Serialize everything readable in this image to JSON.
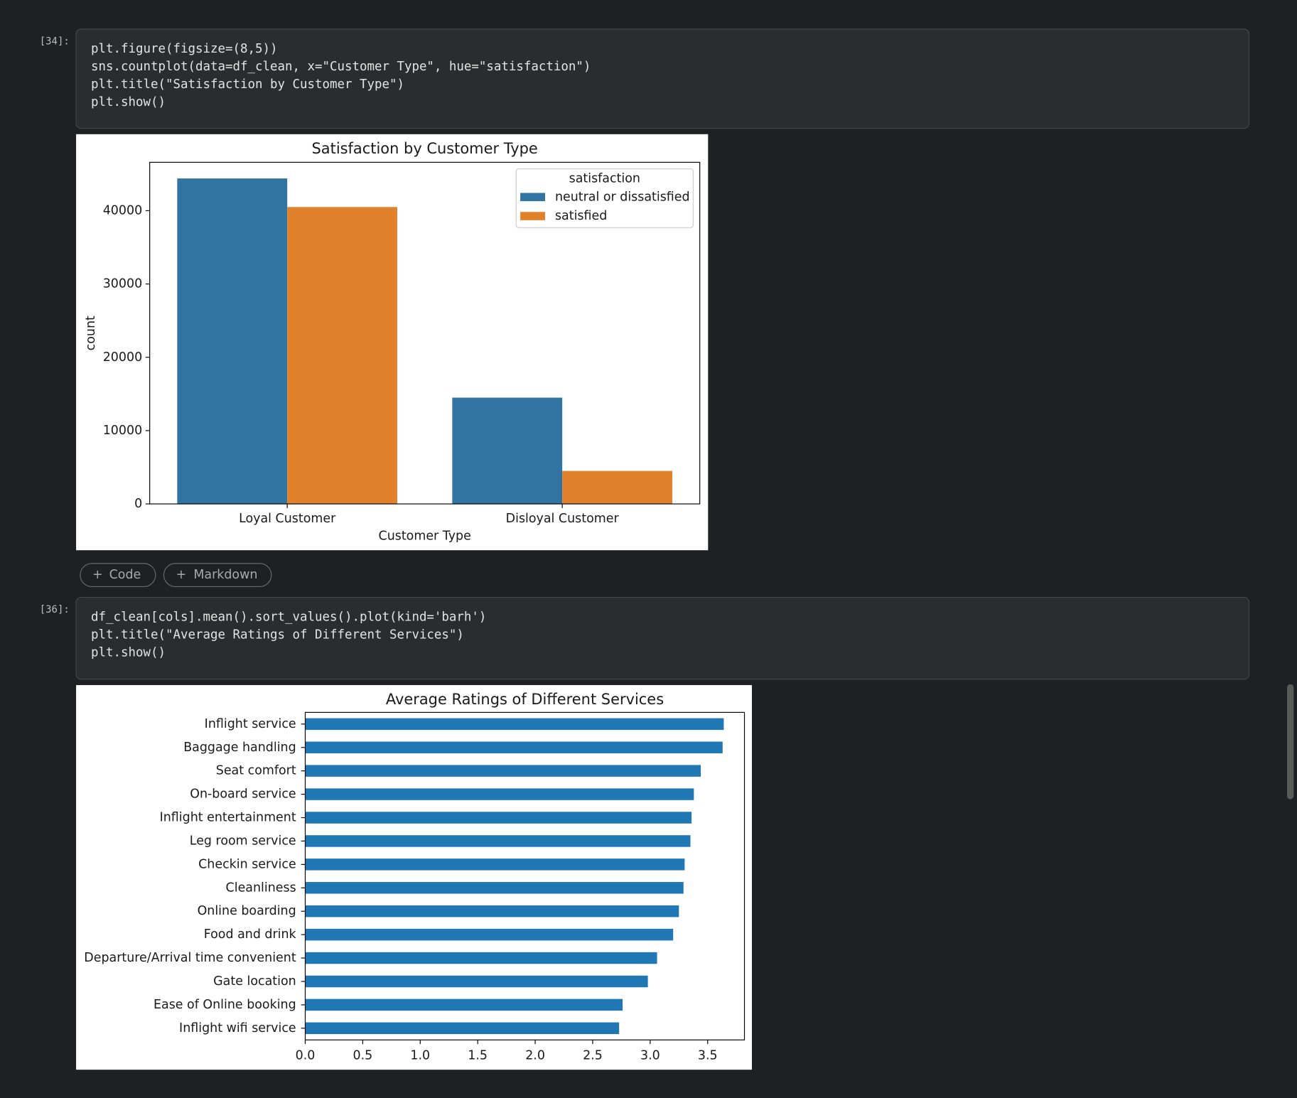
{
  "cells": [
    {
      "prompt": "[34]:",
      "code": [
        "plt.figure(figsize=(8,5))",
        "sns.countplot(data=df_clean, x=\"Customer Type\", hue=\"satisfaction\")",
        "plt.title(\"Satisfaction by Customer Type\")",
        "plt.show()"
      ]
    },
    {
      "prompt": "[36]:",
      "code": [
        "df_clean[cols].mean().sort_values().plot(kind='barh')",
        "plt.title(\"Average Ratings of Different Services\")",
        "plt.show()"
      ]
    }
  ],
  "buttons": [
    "Code",
    "Markdown"
  ],
  "chart_data": [
    {
      "type": "bar",
      "title": "Satisfaction by Customer Type",
      "x_label": "Customer Type",
      "y_label": "count",
      "categories": [
        "Loyal Customer",
        "Disloyal Customer"
      ],
      "series": [
        {
          "name": "neutral or dissatisfied",
          "color": "#3274a1",
          "values": [
            44400,
            14500
          ]
        },
        {
          "name": "satisfied",
          "color": "#e1812c",
          "values": [
            40500,
            4500
          ]
        }
      ],
      "legend_title": "satisfaction",
      "legend": "upper right",
      "ylim": [
        0,
        46600
      ],
      "yticks": [
        0,
        10000,
        20000,
        30000,
        40000
      ],
      "grid": false
    },
    {
      "type": "barh",
      "title": "Average Ratings of Different Services",
      "categories": [
        "Inflight wifi service",
        "Ease of Online booking",
        "Gate location",
        "Departure/Arrival time convenient",
        "Food and drink",
        "Online boarding",
        "Cleanliness",
        "Checkin service",
        "Leg room service",
        "Inflight entertainment",
        "On-board service",
        "Seat comfort",
        "Baggage handling",
        "Inflight service"
      ],
      "values": [
        2.73,
        2.76,
        2.98,
        3.06,
        3.2,
        3.25,
        3.29,
        3.3,
        3.35,
        3.36,
        3.38,
        3.44,
        3.63,
        3.64
      ],
      "color": "#1f77b4",
      "xlim": [
        0,
        3.82
      ],
      "xticks": [
        {
          "value": 0,
          "label": "0.0"
        },
        0.5,
        {
          "value": 1,
          "label": "1.0"
        },
        1.5,
        {
          "value": 2,
          "label": "2.0"
        },
        2.5,
        {
          "value": 3,
          "label": "3.0"
        },
        3.5
      ],
      "grid": false
    }
  ]
}
